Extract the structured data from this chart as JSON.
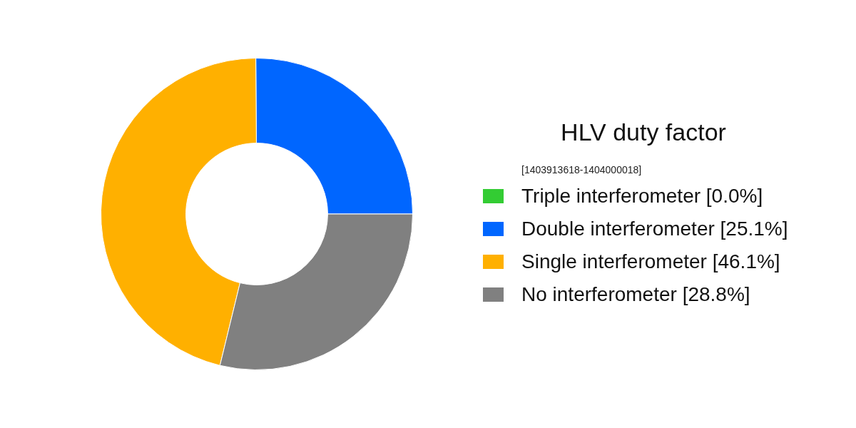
{
  "chart_data": {
    "type": "donut",
    "title": "HLV duty factor",
    "subtitle": "[1403913618-1404000018]",
    "categories": [
      "Triple interferometer [0.0%]",
      "Double interferometer [25.1%]",
      "Single interferometer [46.1%]",
      "No interferometer [28.8%]"
    ],
    "values": [
      0.0,
      25.1,
      46.1,
      28.8
    ],
    "colors": [
      "#33cc33",
      "#0066ff",
      "#ffb000",
      "#808080"
    ],
    "legend": "right"
  }
}
